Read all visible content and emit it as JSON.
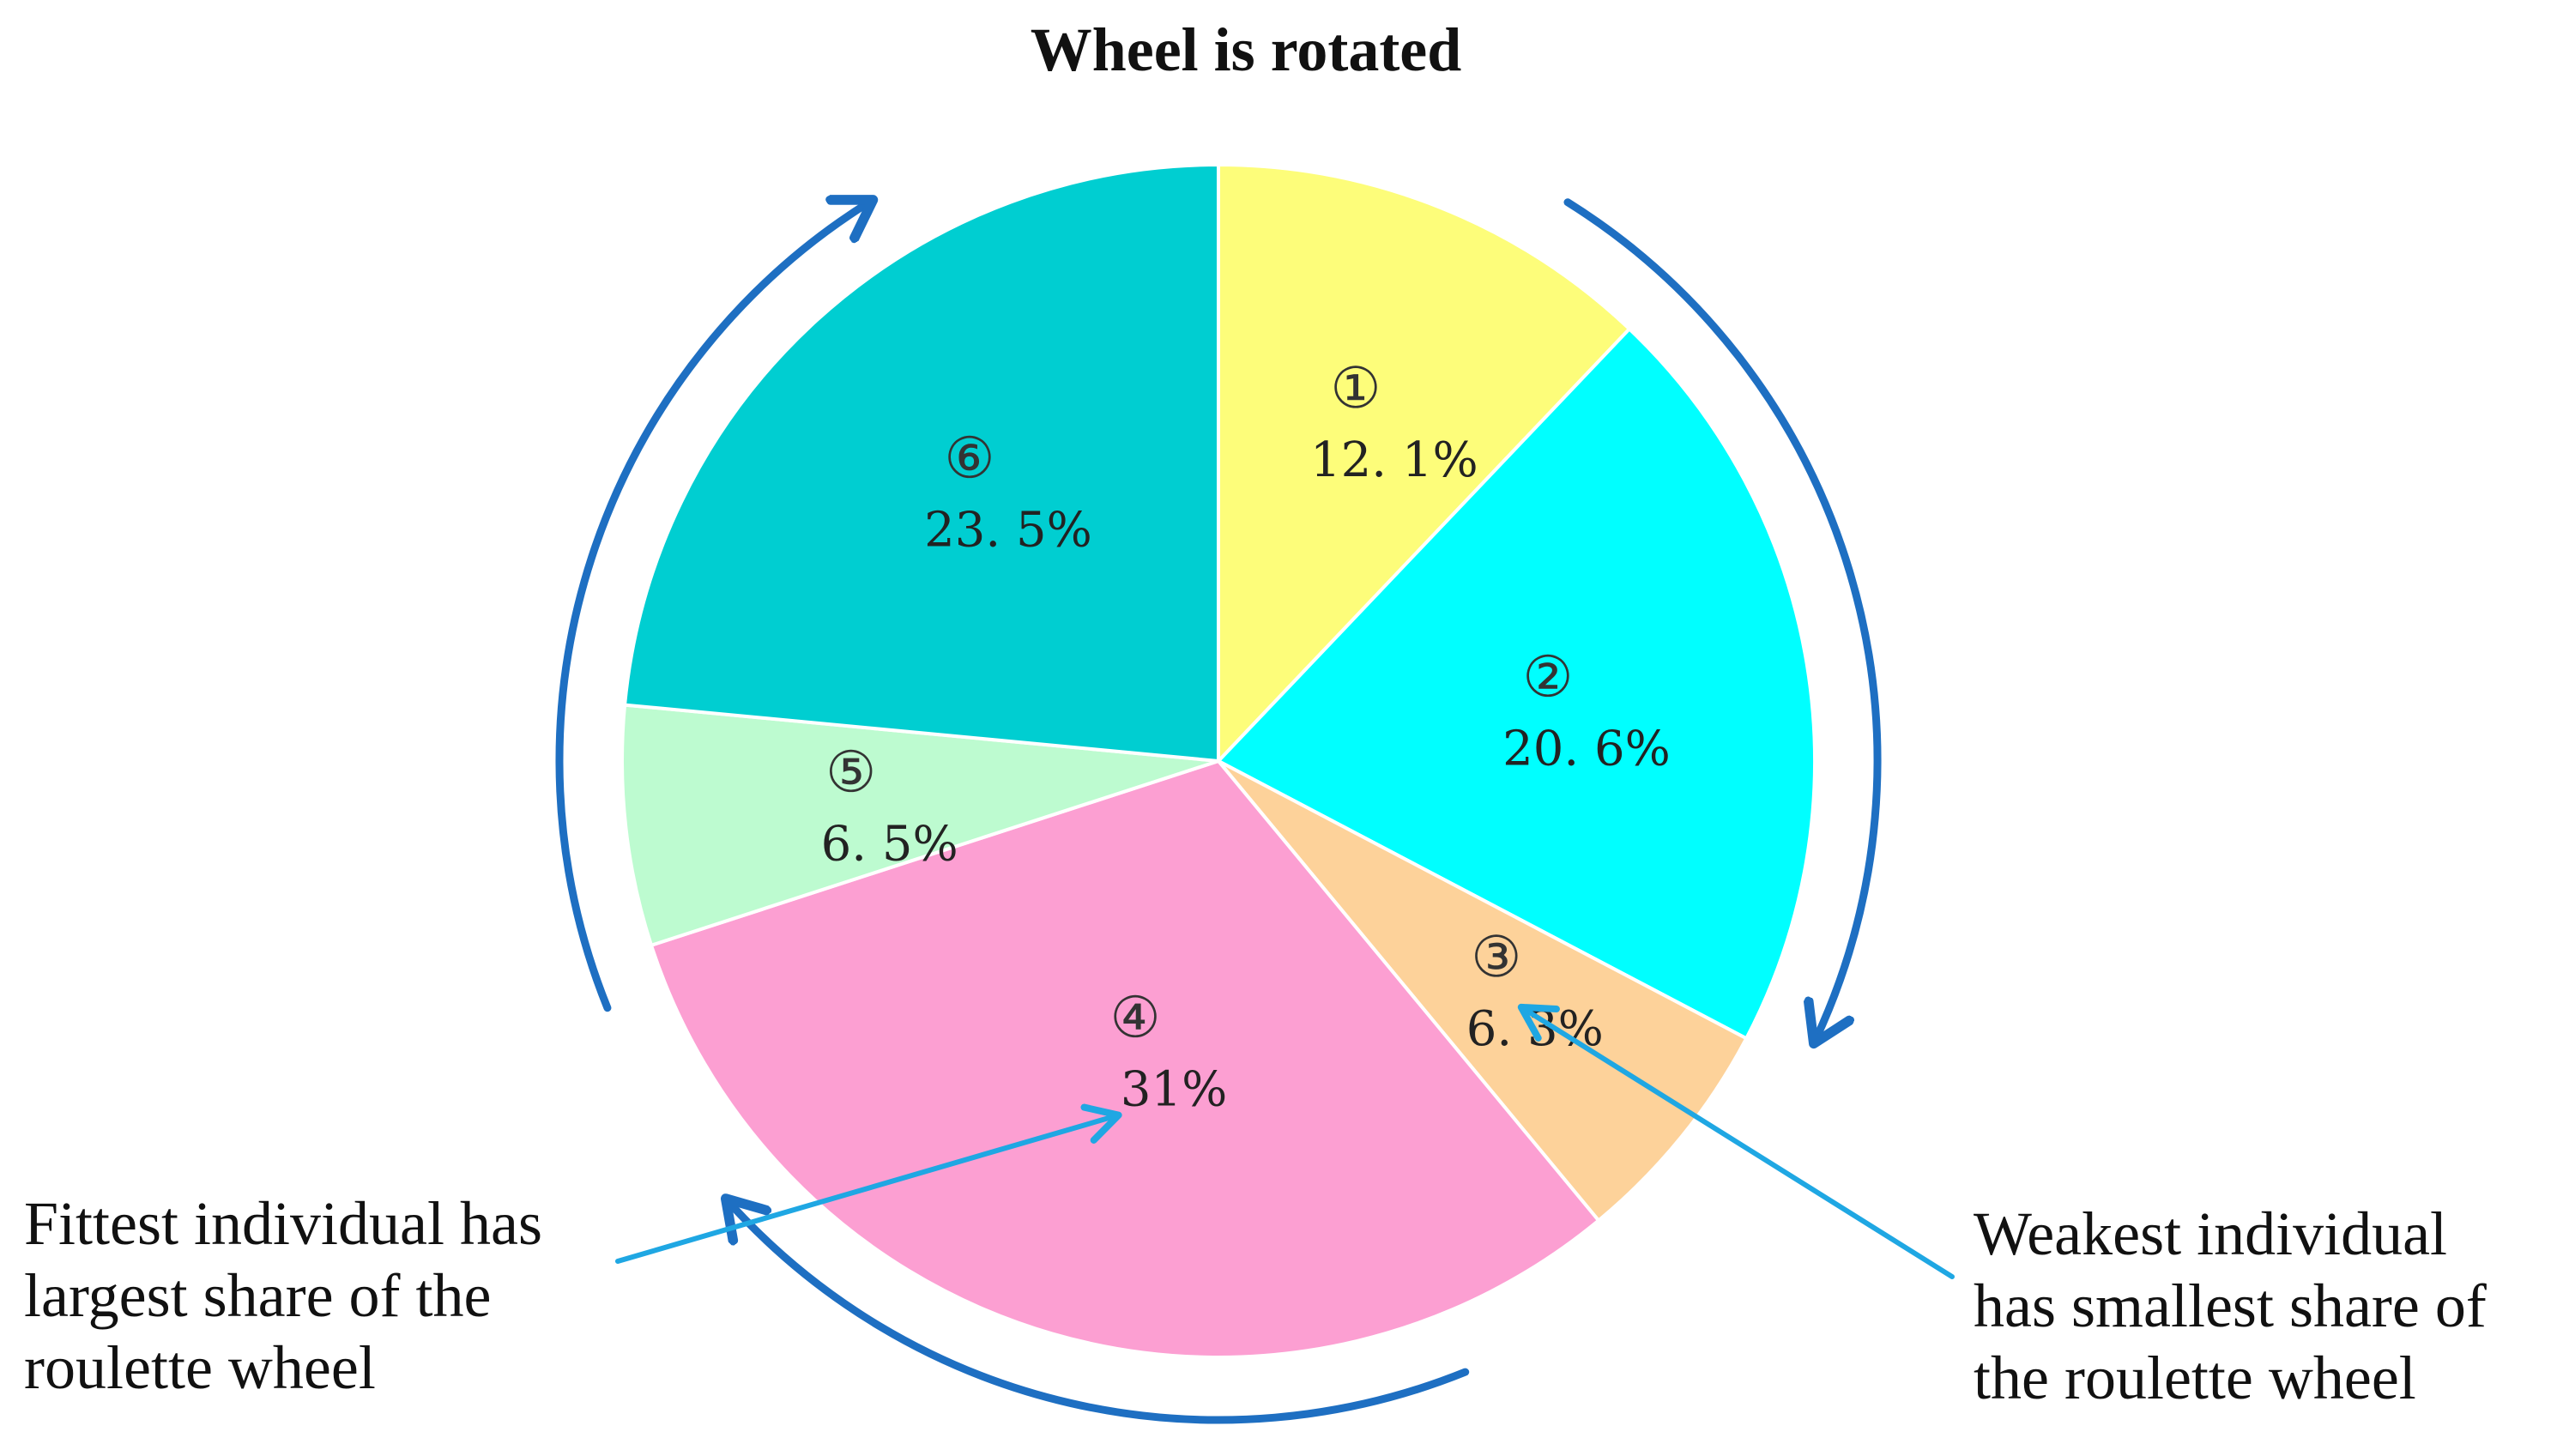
{
  "chart_data": {
    "type": "pie",
    "title": "Wheel is rotated",
    "start_angle_deg": 0,
    "direction": "clockwise",
    "slices": [
      {
        "index_label": "①",
        "value": 12.1,
        "value_label": "12. 1%",
        "color": "#FDFD7A"
      },
      {
        "index_label": "②",
        "value": 20.6,
        "value_label": "20. 6%",
        "color": "#00FFFF"
      },
      {
        "index_label": "③",
        "value": 6.3,
        "value_label": "6. 3%",
        "color": "#FDD29A"
      },
      {
        "index_label": "④",
        "value": 31.0,
        "value_label": "31%",
        "color": "#FC9FD2"
      },
      {
        "index_label": "⑤",
        "value": 6.5,
        "value_label": "6. 5%",
        "color": "#BDFBD0"
      },
      {
        "index_label": "⑥",
        "value": 23.5,
        "value_label": "23. 5%",
        "color": "#00CED1"
      }
    ],
    "legend": "none",
    "annotations": [
      {
        "lines": [
          "Fittest individual has",
          "largest share of the",
          "roulette wheel"
        ],
        "points_to_slice": 3
      },
      {
        "lines": [
          "Weakest individual",
          "has smallest share of",
          "the roulette wheel"
        ],
        "points_to_slice": 2
      }
    ],
    "rotation_arrow_color": "#1E6FC2",
    "pointer_arrow_color": "#1FA7E3",
    "slice_border_color": "#FFFFFF"
  }
}
